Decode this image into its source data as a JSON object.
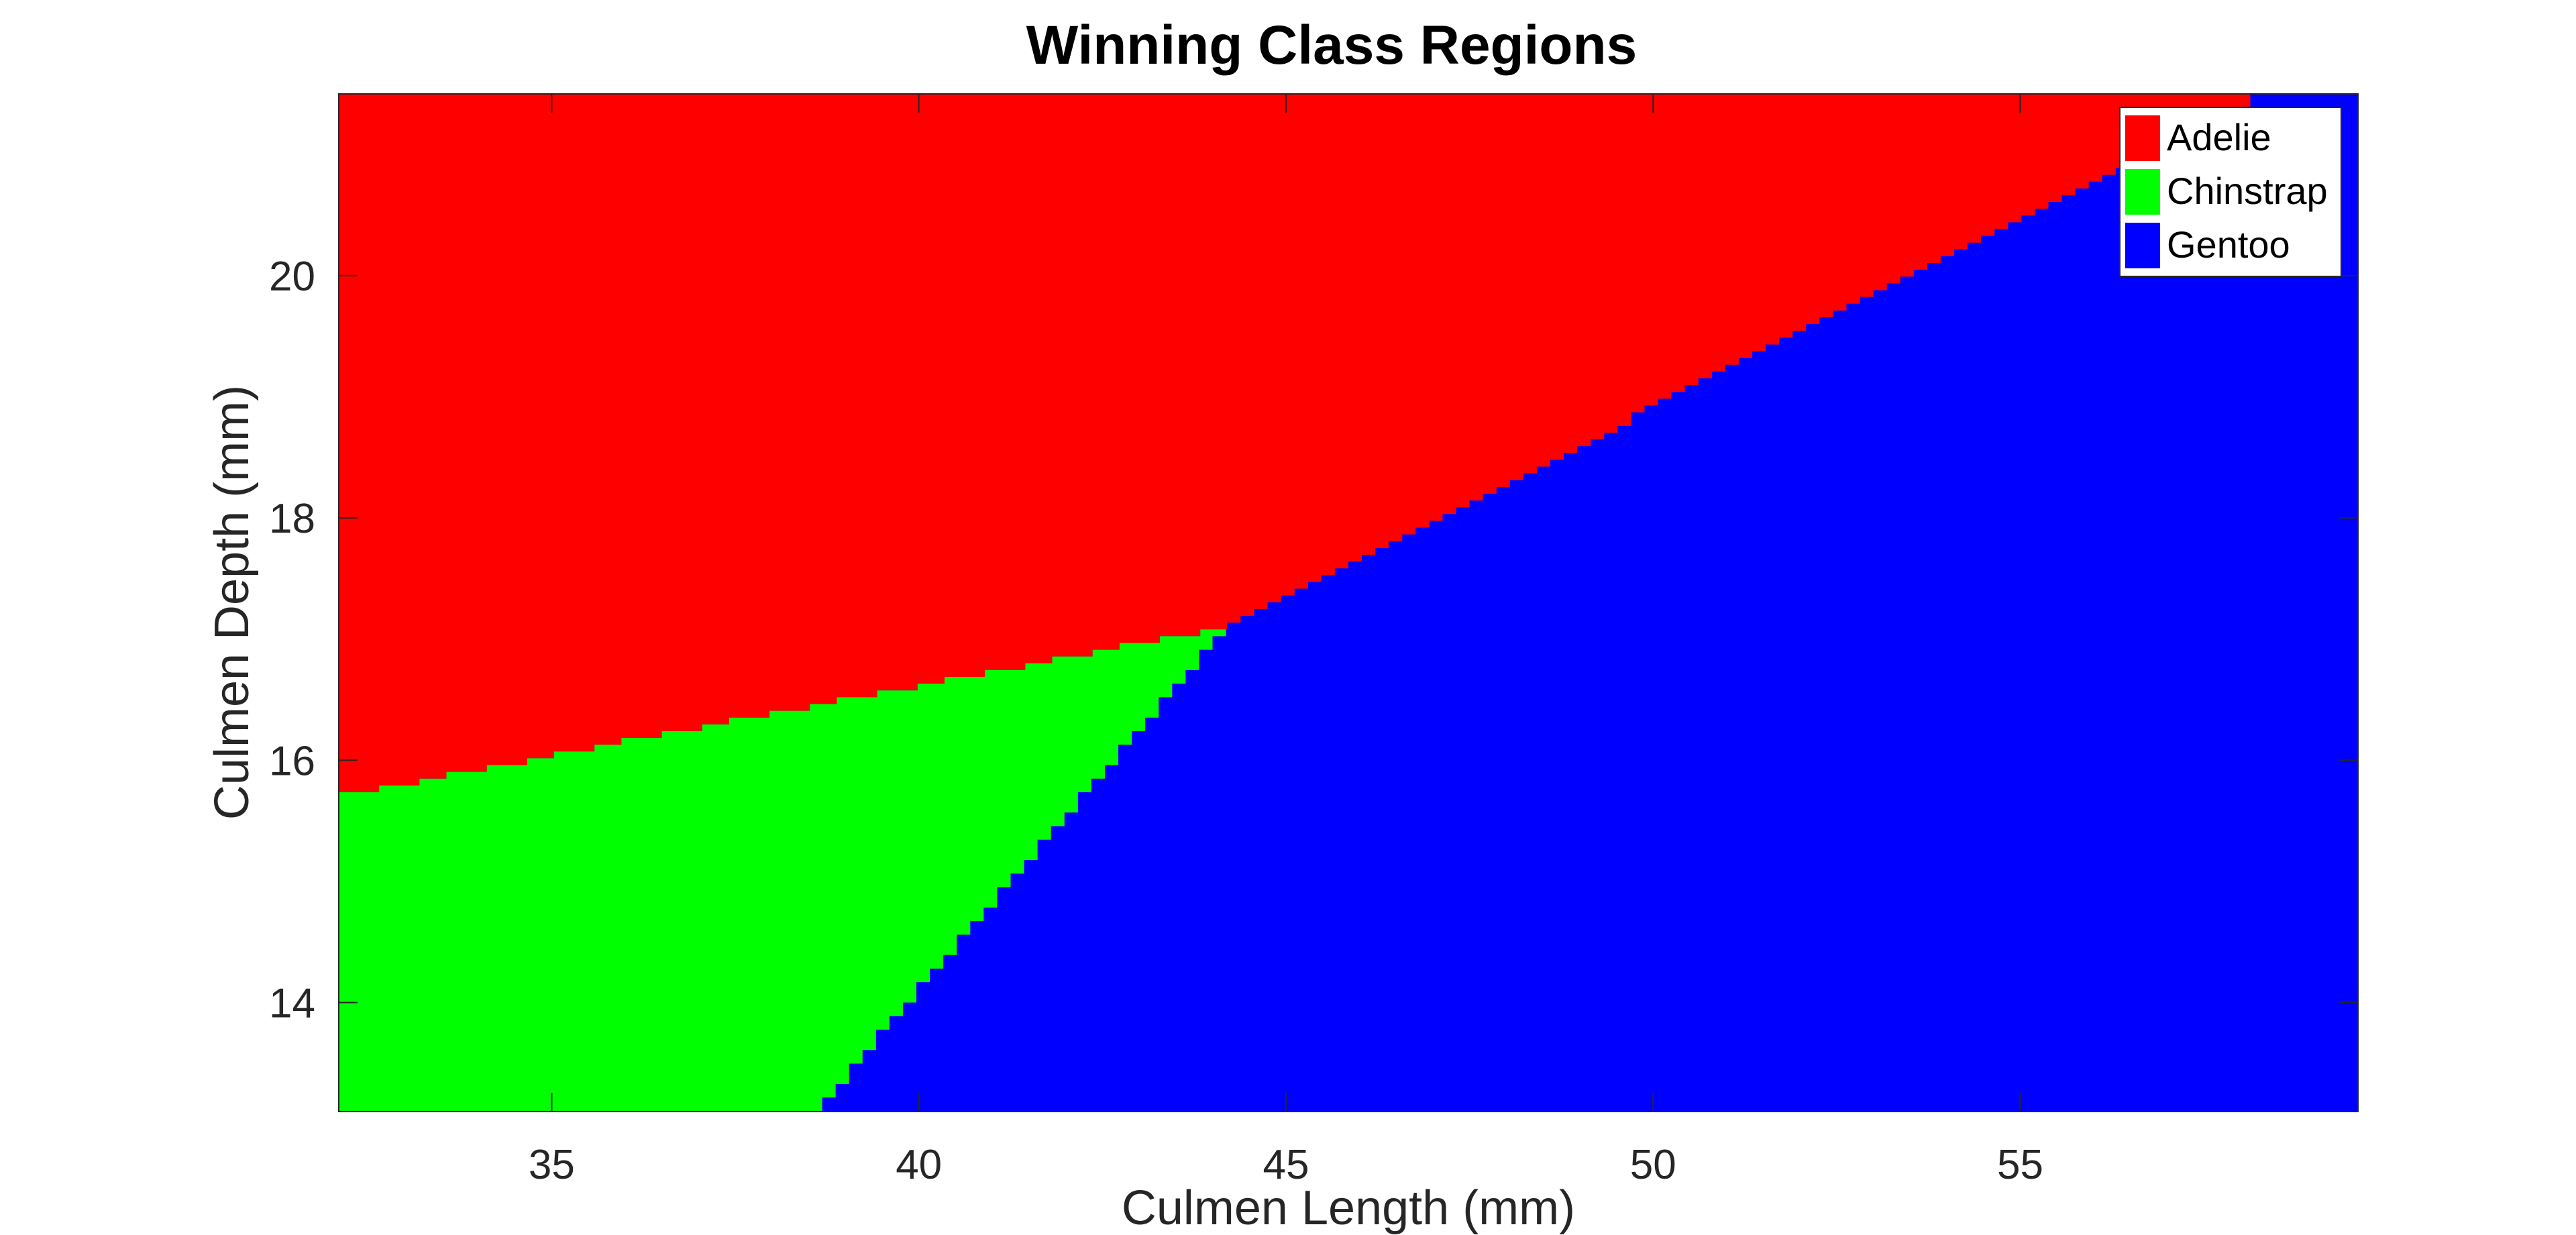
{
  "chart_data": {
    "type": "heatmap",
    "title": "Winning Class Regions",
    "xlabel": "Culmen Length (mm)",
    "ylabel": "Culmen Depth (mm)",
    "xlim": [
      32.1,
      59.6
    ],
    "ylim": [
      13.1,
      21.5
    ],
    "xticks": [
      35,
      40,
      45,
      50,
      55
    ],
    "yticks": [
      14,
      16,
      18,
      20
    ],
    "grid": false,
    "legend_position": "top-right",
    "classes": [
      {
        "name": "Adelie",
        "color": "#ff0000"
      },
      {
        "name": "Chinstrap",
        "color": "#00ff00"
      },
      {
        "name": "Gentoo",
        "color": "#0000ff"
      }
    ],
    "boundaries": {
      "adelie_lower_edge": [
        [
          32.1,
          15.7
        ],
        [
          44.2,
          17.1
        ]
      ],
      "adelie_gentoo_edge": [
        [
          44.2,
          17.1
        ],
        [
          58.3,
          21.5
        ]
      ],
      "chinstrap_gentoo_edge": [
        [
          38.6,
          13.1
        ],
        [
          44.2,
          17.1
        ]
      ]
    }
  }
}
